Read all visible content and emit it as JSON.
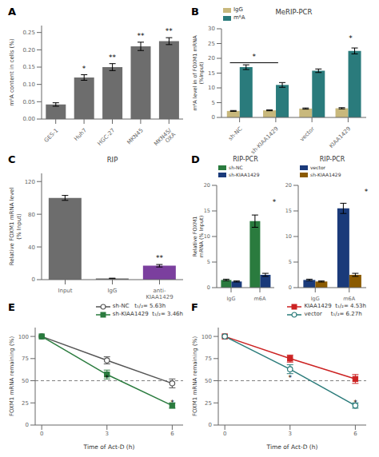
{
  "chart_data": [
    {
      "type": "bar",
      "panel_label": "A",
      "categories": [
        "GES-1",
        "Huh7",
        "HGC-27",
        "MKN45",
        "MKN45/\nOXA"
      ],
      "values": [
        0.042,
        0.12,
        0.15,
        0.21,
        0.225
      ],
      "errors": [
        0.005,
        0.008,
        0.01,
        0.012,
        0.01
      ],
      "color": "#6d6d6d",
      "ylabel": "m⁶A content in cells (%)",
      "ylim": [
        0,
        0.27
      ],
      "yticks": [
        {
          "value": 0,
          "label": "0.00"
        },
        0.05,
        {
          "value": 0.1,
          "label": "0.10"
        },
        0.15,
        {
          "value": 0.2,
          "label": "0.20"
        },
        0.25
      ],
      "annotations": [
        {
          "x": "Huh7",
          "text": "*"
        },
        {
          "x": "HGC-27",
          "text": "**"
        },
        {
          "x": "MKN45",
          "text": "**"
        },
        {
          "x": "MKN45/\nOXA",
          "text": "**"
        }
      ]
    },
    {
      "type": "bar",
      "panel_label": "B",
      "title": "MeRIP-PCR",
      "categories": [
        "sh-NC",
        "sh-KIAA1429",
        "vector",
        "KIAA1429"
      ],
      "series": [
        {
          "name": "IgG",
          "color": "#c8b87c",
          "values": [
            2.2,
            2.4,
            3.0,
            3.1
          ],
          "errors": [
            0.15,
            0.15,
            0.2,
            0.2
          ]
        },
        {
          "name": "m⁶A",
          "color": "#2a7b7c",
          "values": [
            17.0,
            11.0,
            15.8,
            22.5
          ],
          "errors": [
            0.8,
            0.8,
            0.6,
            1.0
          ]
        }
      ],
      "ylabel": "m⁶A level in of FOXM1 mRNA\n(%Input)",
      "ylim": [
        0,
        30
      ],
      "yticks": [
        0,
        5,
        10,
        15,
        20,
        25,
        30
      ],
      "legend": "upper left",
      "annotations": [
        {
          "from": {
            "category": "sh-NC",
            "series": "m⁶A"
          },
          "to": {
            "category": "sh-KIAA1429",
            "series": "m⁶A"
          },
          "y": 18.5,
          "text": "*"
        },
        {
          "from": {
            "category": "vector",
            "series": "m⁶A"
          },
          "to": {
            "category": "KIAA1429",
            "series": "m⁶A"
          },
          "y": 24.5,
          "text": "*"
        }
      ]
    },
    {
      "type": "bar",
      "panel_label": "C",
      "title": "RIP",
      "categories": [
        "Input",
        "IgG",
        "anti-\nKIAA1429"
      ],
      "values": [
        100,
        1.5,
        17
      ],
      "errors": [
        3.0,
        0.3,
        1.5
      ],
      "colors": [
        "#6d6d6d",
        "#6d6d6d",
        "#7b3f9e"
      ],
      "ylabel": "Relative FOXM1 mRNA level\n(% Input)",
      "ylim": [
        0,
        130
      ],
      "yticks": [
        0,
        40,
        80,
        120
      ],
      "annotations": [
        {
          "x": "anti-\nKIAA1429",
          "text": "**"
        }
      ]
    },
    {
      "type": "bar",
      "panel_label": "D",
      "title": "RIP-PCR",
      "categories": [
        "IgG",
        "m6A"
      ],
      "series": [
        {
          "name": "sh-NC",
          "color": "#2a7b3e",
          "values": [
            1.5,
            13.0
          ],
          "errors": [
            0.15,
            1.2
          ]
        },
        {
          "name": "sh-KIAA1429",
          "color": "#1a3a7a",
          "values": [
            1.2,
            2.5
          ],
          "errors": [
            0.1,
            0.3
          ]
        }
      ],
      "ylabel": "Relative FOXM1\nmRNA (% Input)",
      "ylim": [
        0,
        20
      ],
      "yticks": [
        0,
        5,
        10,
        15,
        20
      ],
      "legend": "upper left",
      "annotations": [
        {
          "from": {
            "category": "m6A",
            "series": "sh-NC"
          },
          "to": {
            "category": "m6A",
            "series": "sh-KIAA1429"
          },
          "y": 15.5,
          "text": "*"
        }
      ]
    },
    {
      "type": "bar",
      "title": "RIP-PCR",
      "categories": [
        "IgG",
        "m6A"
      ],
      "series": [
        {
          "name": "vector",
          "color": "#1a3a7a",
          "values": [
            1.5,
            15.5
          ],
          "errors": [
            0.15,
            1.0
          ]
        },
        {
          "name": "sh-KIAA1429",
          "color": "#8b5a00",
          "values": [
            1.2,
            2.5
          ],
          "errors": [
            0.1,
            0.3
          ]
        }
      ],
      "ylim": [
        0,
        20
      ],
      "yticks": [
        0,
        5,
        10,
        15,
        20
      ],
      "legend": "upper left",
      "annotations": [
        {
          "from": {
            "category": "m6A",
            "series": "vector"
          },
          "to": {
            "category": "m6A",
            "series": "sh-KIAA1429"
          },
          "y": 17.5,
          "text": "*"
        }
      ]
    },
    {
      "type": "line",
      "panel_label": "E",
      "x": [
        0,
        3,
        6
      ],
      "series": [
        {
          "name": "sh-NC   t₁/₂= 5.63h",
          "color": "#555555",
          "marker": "open_circle",
          "values": [
            100,
            73,
            47
          ],
          "errors": [
            0,
            4,
            5
          ]
        },
        {
          "name": "sh-KIAA1429  t₁/₂= 3.46h",
          "color": "#2a7b3e",
          "marker": "square",
          "values": [
            100,
            57,
            22
          ],
          "errors": [
            0,
            5,
            3
          ]
        }
      ],
      "xlabel": "Time of Act-D (h)",
      "ylabel": "FOXM1 mRNA remaining (%)",
      "xlim": [
        -0.3,
        6.5
      ],
      "xticks": [
        0,
        3,
        6
      ],
      "ylim": [
        0,
        110
      ],
      "yticks": [
        0,
        25,
        50,
        75,
        100
      ],
      "legend": "upper right",
      "annotations": [
        {
          "y": 50,
          "line_style": "dashed",
          "color": "#808080"
        },
        {
          "x": 3,
          "y": 46,
          "text": "*"
        },
        {
          "x": 6,
          "y": 18,
          "text": "*"
        }
      ]
    },
    {
      "type": "line",
      "panel_label": "F",
      "x": [
        0,
        3,
        6
      ],
      "series": [
        {
          "name": "KIAA1429  t₁/₂= 4.53h",
          "color": "#cc2222",
          "marker": "square",
          "values": [
            100,
            75,
            52
          ],
          "errors": [
            0,
            4,
            5
          ]
        },
        {
          "name": "vector     t₁/₂= 6.27h",
          "color": "#2a7b7a",
          "marker": "open_circle",
          "values": [
            100,
            63,
            22
          ],
          "errors": [
            0,
            5,
            3
          ]
        }
      ],
      "xlabel": "Time of Act-D (h)",
      "ylabel": "FOXM1 mRNA remaining (%)",
      "xlim": [
        -0.3,
        6.5
      ],
      "xticks": [
        0,
        3,
        6
      ],
      "ylim": [
        0,
        110
      ],
      "yticks": [
        0,
        25,
        50,
        75,
        100
      ],
      "legend": "upper right",
      "annotations": [
        {
          "y": 50,
          "line_style": "dashed",
          "color": "#808080"
        },
        {
          "x": 3,
          "y": 46,
          "text": "*"
        },
        {
          "x": 6,
          "y": 18,
          "text": "*"
        }
      ]
    }
  ]
}
